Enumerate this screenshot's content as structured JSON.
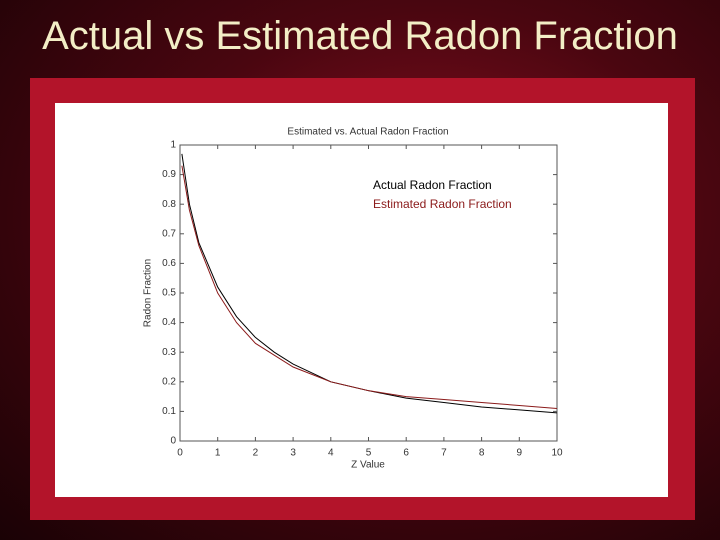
{
  "slide": {
    "title": "Actual vs Estimated Radon Fraction"
  },
  "chart_data": {
    "type": "line",
    "title": "Estimated vs. Actual Radon Fraction",
    "x_label": "Z Value",
    "y_label": "Radon Fraction",
    "x": [
      0.05,
      0.25,
      0.5,
      1,
      1.5,
      2,
      2.5,
      3,
      4,
      5,
      6,
      7,
      8,
      9,
      10
    ],
    "series": [
      {
        "name": "Actual Radon Fraction",
        "color": "#000000",
        "values": [
          0.97,
          0.8,
          0.67,
          0.52,
          0.42,
          0.35,
          0.3,
          0.26,
          0.2,
          0.17,
          0.145,
          0.13,
          0.115,
          0.105,
          0.095
        ]
      },
      {
        "name": "Estimated Radon Fraction",
        "color": "#8b1a1a",
        "values": [
          0.93,
          0.78,
          0.66,
          0.5,
          0.4,
          0.33,
          0.29,
          0.25,
          0.2,
          0.17,
          0.15,
          0.14,
          0.13,
          0.12,
          0.11
        ]
      }
    ],
    "xlim": [
      0,
      10
    ],
    "xticks": [
      0,
      1,
      2,
      3,
      4,
      5,
      6,
      7,
      8,
      9,
      10
    ],
    "ylim": [
      0,
      1
    ],
    "yticks": [
      0,
      0.1,
      0.2,
      0.3,
      0.4,
      0.5,
      0.6,
      0.7,
      0.8,
      0.9,
      1
    ],
    "grid": false,
    "legend": "upper right"
  }
}
